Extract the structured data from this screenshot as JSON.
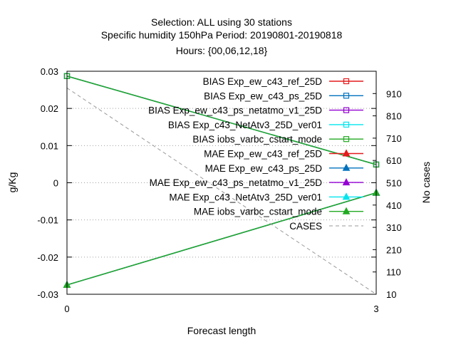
{
  "chart_data": {
    "type": "line",
    "title_lines": [
      "Selection: ALL using    30 stations",
      "Specific humidity 150hPa   Period: 20190801-20190818",
      "Hours: {00,06,12,18}"
    ],
    "xlabel": "Forecast length",
    "ylabel": "g/Kg",
    "y2label": "No cases",
    "x": [
      0,
      3
    ],
    "x_ticks": [
      "0",
      "3"
    ],
    "xlim": [
      0,
      3
    ],
    "ylim": [
      -0.03,
      0.03
    ],
    "y_ticks": [
      0.03,
      0.02,
      0.01,
      0,
      -0.01,
      -0.02,
      -0.03
    ],
    "y_tick_labels": [
      "0.03",
      "0.02",
      "0.01",
      "0",
      "-0.01",
      "-0.02",
      "-0.03"
    ],
    "y2lim": [
      10,
      1010
    ],
    "y2_ticks": [
      910,
      810,
      710,
      610,
      510,
      410,
      310,
      210,
      110,
      10
    ],
    "y2_tick_labels": [
      "910",
      "810",
      "710",
      "610",
      "510",
      "410",
      "310",
      "210",
      "110",
      "10"
    ],
    "grid": true,
    "legend_position": "top-right",
    "series": [
      {
        "name": "BIAS Exp_ew_c43_ref_25D",
        "color": "#e41a1c",
        "marker": "square-open",
        "values": [
          0.0287,
          0.0049
        ]
      },
      {
        "name": "BIAS Exp_ew_c43_ps_25D",
        "color": "#0072bd",
        "marker": "square-open",
        "values": [
          0.0287,
          0.0049
        ]
      },
      {
        "name": "BIAS Exp_ew_c43_ps_netatmo_v1_25D",
        "color": "#9400d3",
        "marker": "square-open",
        "values": [
          0.0287,
          0.0049
        ]
      },
      {
        "name": "BIAS Exp_c43_NetAtv3_25D_ver01",
        "color": "#00e5ee",
        "marker": "square-open",
        "values": [
          0.0287,
          0.0049
        ]
      },
      {
        "name": "BIAS iobs_varbc_cstart_mode",
        "color": "#22aa22",
        "marker": "square-open",
        "values": [
          0.0287,
          0.0049
        ]
      },
      {
        "name": "MAE Exp_ew_c43_ref_25D",
        "color": "#e41a1c",
        "marker": "triangle",
        "values": [
          -0.0275,
          -0.0027
        ]
      },
      {
        "name": "MAE Exp_ew_c43_ps_25D",
        "color": "#0072bd",
        "marker": "triangle",
        "values": [
          -0.0275,
          -0.0027
        ]
      },
      {
        "name": "MAE Exp_ew_c43_ps_netatmo_v1_25D",
        "color": "#9400d3",
        "marker": "triangle",
        "values": [
          -0.0275,
          -0.0027
        ]
      },
      {
        "name": "MAE Exp_c43_NetAtv3_25D_ver01",
        "color": "#00e5ee",
        "marker": "triangle",
        "values": [
          -0.0275,
          -0.0027
        ]
      },
      {
        "name": "MAE iobs_varbc_cstart_mode",
        "color": "#22aa22",
        "marker": "triangle",
        "values": [
          -0.0275,
          -0.0027
        ]
      },
      {
        "name": "CASES",
        "color": "#999999",
        "marker": "none",
        "dashed": true,
        "axis": "y2",
        "values": [
          935,
          10
        ]
      }
    ]
  }
}
